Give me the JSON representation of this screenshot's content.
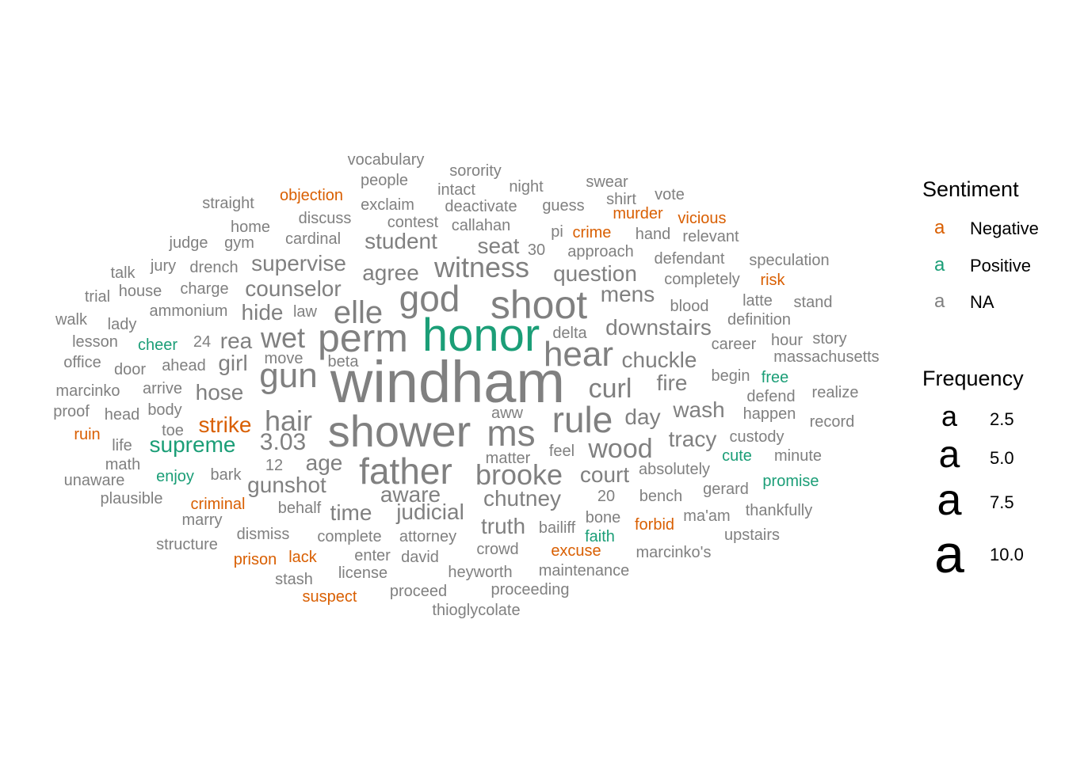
{
  "chart_data": {
    "type": "wordcloud",
    "color_legend": {
      "title": "Sentiment",
      "key_glyph": "a",
      "entries": [
        {
          "label": "Negative",
          "color": "#D95F02"
        },
        {
          "label": "Positive",
          "color": "#1B9E77"
        },
        {
          "label": "NA",
          "color": "#808080"
        }
      ]
    },
    "size_legend": {
      "title": "Frequency",
      "key_glyph": "a",
      "entries": [
        {
          "label": "2.5",
          "value": 2.5
        },
        {
          "label": "5.0",
          "value": 5.0
        },
        {
          "label": "7.5",
          "value": 7.5
        },
        {
          "label": "10.0",
          "value": 10.0
        }
      ]
    },
    "words": [
      {
        "word": "windham",
        "frequency": 11,
        "sentiment": "NA"
      },
      {
        "word": "honor",
        "frequency": 8,
        "sentiment": "Positive"
      },
      {
        "word": "shower",
        "frequency": 8,
        "sentiment": "NA"
      },
      {
        "word": "perm",
        "frequency": 7.5,
        "sentiment": "NA"
      },
      {
        "word": "shoot",
        "frequency": 7,
        "sentiment": "NA"
      },
      {
        "word": "god",
        "frequency": 6,
        "sentiment": "NA"
      },
      {
        "word": "rule",
        "frequency": 6.5,
        "sentiment": "NA"
      },
      {
        "word": "ms",
        "frequency": 6.5,
        "sentiment": "NA"
      },
      {
        "word": "father",
        "frequency": 6,
        "sentiment": "NA"
      },
      {
        "word": "hear",
        "frequency": 5.5,
        "sentiment": "NA"
      },
      {
        "word": "elle",
        "frequency": 5,
        "sentiment": "NA"
      },
      {
        "word": "gun",
        "frequency": 5,
        "sentiment": "NA"
      },
      {
        "word": "witness",
        "frequency": 4.5,
        "sentiment": "NA"
      },
      {
        "word": "wet",
        "frequency": 4.5,
        "sentiment": "NA"
      },
      {
        "word": "hair",
        "frequency": 4.5,
        "sentiment": "NA"
      },
      {
        "word": "brooke",
        "frequency": 4.5,
        "sentiment": "NA"
      },
      {
        "word": "wood",
        "frequency": 4,
        "sentiment": "NA"
      },
      {
        "word": "curl",
        "frequency": 4,
        "sentiment": "NA"
      },
      {
        "word": "3.03",
        "frequency": 4,
        "sentiment": "NA"
      },
      {
        "word": "downstairs",
        "frequency": 3.5,
        "sentiment": "NA"
      },
      {
        "word": "chuckle",
        "frequency": 3.5,
        "sentiment": "NA"
      },
      {
        "word": "question",
        "frequency": 3.5,
        "sentiment": "NA"
      },
      {
        "word": "counselor",
        "frequency": 3.5,
        "sentiment": "NA"
      },
      {
        "word": "supervise",
        "frequency": 3.5,
        "sentiment": "NA"
      },
      {
        "word": "student",
        "frequency": 3.5,
        "sentiment": "NA"
      },
      {
        "word": "agree",
        "frequency": 3.5,
        "sentiment": "NA"
      },
      {
        "word": "mens",
        "frequency": 3.5,
        "sentiment": "NA"
      },
      {
        "word": "seat",
        "frequency": 3.5,
        "sentiment": "NA"
      },
      {
        "word": "hide",
        "frequency": 3.5,
        "sentiment": "NA"
      },
      {
        "word": "rea",
        "frequency": 3.5,
        "sentiment": "NA"
      },
      {
        "word": "girl",
        "frequency": 3.5,
        "sentiment": "NA"
      },
      {
        "word": "hose",
        "frequency": 3.5,
        "sentiment": "NA"
      },
      {
        "word": "fire",
        "frequency": 3.5,
        "sentiment": "NA"
      },
      {
        "word": "wash",
        "frequency": 3.5,
        "sentiment": "NA"
      },
      {
        "word": "day",
        "frequency": 3.5,
        "sentiment": "NA"
      },
      {
        "word": "tracy",
        "frequency": 3.5,
        "sentiment": "NA"
      },
      {
        "word": "court",
        "frequency": 3.5,
        "sentiment": "NA"
      },
      {
        "word": "chutney",
        "frequency": 3.5,
        "sentiment": "NA"
      },
      {
        "word": "aware",
        "frequency": 3.5,
        "sentiment": "NA"
      },
      {
        "word": "judicial",
        "frequency": 3.5,
        "sentiment": "NA"
      },
      {
        "word": "time",
        "frequency": 3.5,
        "sentiment": "NA"
      },
      {
        "word": "truth",
        "frequency": 3.5,
        "sentiment": "NA"
      },
      {
        "word": "gunshot",
        "frequency": 3.5,
        "sentiment": "NA"
      },
      {
        "word": "age",
        "frequency": 3.5,
        "sentiment": "NA"
      },
      {
        "word": "supreme",
        "frequency": 3.5,
        "sentiment": "Positive"
      },
      {
        "word": "strike",
        "frequency": 3.5,
        "sentiment": "Negative"
      },
      {
        "word": "vocabulary",
        "frequency": 2.5,
        "sentiment": "NA"
      },
      {
        "word": "sorority",
        "frequency": 2.5,
        "sentiment": "NA"
      },
      {
        "word": "people",
        "frequency": 2.5,
        "sentiment": "NA"
      },
      {
        "word": "swear",
        "frequency": 2.5,
        "sentiment": "NA"
      },
      {
        "word": "intact",
        "frequency": 2.5,
        "sentiment": "NA"
      },
      {
        "word": "night",
        "frequency": 2.5,
        "sentiment": "NA"
      },
      {
        "word": "straight",
        "frequency": 2.5,
        "sentiment": "NA"
      },
      {
        "word": "objection",
        "frequency": 2.5,
        "sentiment": "Negative"
      },
      {
        "word": "exclaim",
        "frequency": 2.5,
        "sentiment": "NA"
      },
      {
        "word": "deactivate",
        "frequency": 2.5,
        "sentiment": "NA"
      },
      {
        "word": "guess",
        "frequency": 2.5,
        "sentiment": "NA"
      },
      {
        "word": "shirt",
        "frequency": 2.5,
        "sentiment": "NA"
      },
      {
        "word": "vote",
        "frequency": 2.5,
        "sentiment": "NA"
      },
      {
        "word": "home",
        "frequency": 2.5,
        "sentiment": "NA"
      },
      {
        "word": "discuss",
        "frequency": 2.5,
        "sentiment": "NA"
      },
      {
        "word": "contest",
        "frequency": 2.5,
        "sentiment": "NA"
      },
      {
        "word": "callahan",
        "frequency": 2.5,
        "sentiment": "NA"
      },
      {
        "word": "murder",
        "frequency": 2.5,
        "sentiment": "Negative"
      },
      {
        "word": "vicious",
        "frequency": 2.5,
        "sentiment": "Negative"
      },
      {
        "word": "judge",
        "frequency": 2.5,
        "sentiment": "NA"
      },
      {
        "word": "gym",
        "frequency": 2.5,
        "sentiment": "NA"
      },
      {
        "word": "cardinal",
        "frequency": 2.5,
        "sentiment": "NA"
      },
      {
        "word": "pi",
        "frequency": 2.5,
        "sentiment": "NA"
      },
      {
        "word": "crime",
        "frequency": 2.5,
        "sentiment": "Negative"
      },
      {
        "word": "hand",
        "frequency": 2.5,
        "sentiment": "NA"
      },
      {
        "word": "relevant",
        "frequency": 2.5,
        "sentiment": "NA"
      },
      {
        "word": "30",
        "frequency": 2.5,
        "sentiment": "NA"
      },
      {
        "word": "approach",
        "frequency": 2.5,
        "sentiment": "NA"
      },
      {
        "word": "defendant",
        "frequency": 2.5,
        "sentiment": "NA"
      },
      {
        "word": "speculation",
        "frequency": 2.5,
        "sentiment": "NA"
      },
      {
        "word": "talk",
        "frequency": 2.5,
        "sentiment": "NA"
      },
      {
        "word": "jury",
        "frequency": 2.5,
        "sentiment": "NA"
      },
      {
        "word": "drench",
        "frequency": 2.5,
        "sentiment": "NA"
      },
      {
        "word": "completely",
        "frequency": 2.5,
        "sentiment": "NA"
      },
      {
        "word": "risk",
        "frequency": 2.5,
        "sentiment": "Negative"
      },
      {
        "word": "trial",
        "frequency": 2.5,
        "sentiment": "NA"
      },
      {
        "word": "house",
        "frequency": 2.5,
        "sentiment": "NA"
      },
      {
        "word": "charge",
        "frequency": 2.5,
        "sentiment": "NA"
      },
      {
        "word": "latte",
        "frequency": 2.5,
        "sentiment": "NA"
      },
      {
        "word": "stand",
        "frequency": 2.5,
        "sentiment": "NA"
      },
      {
        "word": "ammonium",
        "frequency": 2.5,
        "sentiment": "NA"
      },
      {
        "word": "law",
        "frequency": 2.5,
        "sentiment": "NA"
      },
      {
        "word": "blood",
        "frequency": 2.5,
        "sentiment": "NA"
      },
      {
        "word": "definition",
        "frequency": 2.5,
        "sentiment": "NA"
      },
      {
        "word": "walk",
        "frequency": 2.5,
        "sentiment": "NA"
      },
      {
        "word": "lady",
        "frequency": 2.5,
        "sentiment": "NA"
      },
      {
        "word": "delta",
        "frequency": 2.5,
        "sentiment": "NA"
      },
      {
        "word": "lesson",
        "frequency": 2.5,
        "sentiment": "NA"
      },
      {
        "word": "cheer",
        "frequency": 2.5,
        "sentiment": "Positive"
      },
      {
        "word": "24",
        "frequency": 2.5,
        "sentiment": "NA"
      },
      {
        "word": "career",
        "frequency": 2.5,
        "sentiment": "NA"
      },
      {
        "word": "hour",
        "frequency": 2.5,
        "sentiment": "NA"
      },
      {
        "word": "story",
        "frequency": 2.5,
        "sentiment": "NA"
      },
      {
        "word": "massachusetts",
        "frequency": 2.5,
        "sentiment": "NA"
      },
      {
        "word": "office",
        "frequency": 2.5,
        "sentiment": "NA"
      },
      {
        "word": "door",
        "frequency": 2.5,
        "sentiment": "NA"
      },
      {
        "word": "ahead",
        "frequency": 2.5,
        "sentiment": "NA"
      },
      {
        "word": "beta",
        "frequency": 2.5,
        "sentiment": "NA"
      },
      {
        "word": "begin",
        "frequency": 2.5,
        "sentiment": "NA"
      },
      {
        "word": "free",
        "frequency": 2.5,
        "sentiment": "Positive"
      },
      {
        "word": "marcinko",
        "frequency": 2.5,
        "sentiment": "NA"
      },
      {
        "word": "arrive",
        "frequency": 2.5,
        "sentiment": "NA"
      },
      {
        "word": "defend",
        "frequency": 2.5,
        "sentiment": "NA"
      },
      {
        "word": "realize",
        "frequency": 2.5,
        "sentiment": "NA"
      },
      {
        "word": "proof",
        "frequency": 2.5,
        "sentiment": "NA"
      },
      {
        "word": "head",
        "frequency": 2.5,
        "sentiment": "NA"
      },
      {
        "word": "body",
        "frequency": 2.5,
        "sentiment": "NA"
      },
      {
        "word": "aww",
        "frequency": 2.5,
        "sentiment": "NA"
      },
      {
        "word": "happen",
        "frequency": 2.5,
        "sentiment": "NA"
      },
      {
        "word": "record",
        "frequency": 2.5,
        "sentiment": "NA"
      },
      {
        "word": "ruin",
        "frequency": 2.5,
        "sentiment": "Negative"
      },
      {
        "word": "toe",
        "frequency": 2.5,
        "sentiment": "NA"
      },
      {
        "word": "custody",
        "frequency": 2.5,
        "sentiment": "NA"
      },
      {
        "word": "life",
        "frequency": 2.5,
        "sentiment": "NA"
      },
      {
        "word": "feel",
        "frequency": 2.5,
        "sentiment": "NA"
      },
      {
        "word": "cute",
        "frequency": 2.5,
        "sentiment": "Positive"
      },
      {
        "word": "minute",
        "frequency": 2.5,
        "sentiment": "NA"
      },
      {
        "word": "math",
        "frequency": 2.5,
        "sentiment": "NA"
      },
      {
        "word": "12",
        "frequency": 2.5,
        "sentiment": "NA"
      },
      {
        "word": "matter",
        "frequency": 2.5,
        "sentiment": "NA"
      },
      {
        "word": "absolutely",
        "frequency": 2.5,
        "sentiment": "NA"
      },
      {
        "word": "unaware",
        "frequency": 2.5,
        "sentiment": "NA"
      },
      {
        "word": "enjoy",
        "frequency": 2.5,
        "sentiment": "Positive"
      },
      {
        "word": "bark",
        "frequency": 2.5,
        "sentiment": "NA"
      },
      {
        "word": "gerard",
        "frequency": 2.5,
        "sentiment": "NA"
      },
      {
        "word": "promise",
        "frequency": 2.5,
        "sentiment": "Positive"
      },
      {
        "word": "plausible",
        "frequency": 2.5,
        "sentiment": "NA"
      },
      {
        "word": "20",
        "frequency": 2.5,
        "sentiment": "NA"
      },
      {
        "word": "bench",
        "frequency": 2.5,
        "sentiment": "NA"
      },
      {
        "word": "criminal",
        "frequency": 2.5,
        "sentiment": "Negative"
      },
      {
        "word": "behalf",
        "frequency": 2.5,
        "sentiment": "NA"
      },
      {
        "word": "thankfully",
        "frequency": 2.5,
        "sentiment": "NA"
      },
      {
        "word": "marry",
        "frequency": 2.5,
        "sentiment": "NA"
      },
      {
        "word": "bone",
        "frequency": 2.5,
        "sentiment": "NA"
      },
      {
        "word": "ma'am",
        "frequency": 2.5,
        "sentiment": "NA"
      },
      {
        "word": "bailiff",
        "frequency": 2.5,
        "sentiment": "NA"
      },
      {
        "word": "forbid",
        "frequency": 2.5,
        "sentiment": "Negative"
      },
      {
        "word": "dismiss",
        "frequency": 2.5,
        "sentiment": "NA"
      },
      {
        "word": "faith",
        "frequency": 2.5,
        "sentiment": "Positive"
      },
      {
        "word": "upstairs",
        "frequency": 2.5,
        "sentiment": "NA"
      },
      {
        "word": "complete",
        "frequency": 2.5,
        "sentiment": "NA"
      },
      {
        "word": "attorney",
        "frequency": 2.5,
        "sentiment": "NA"
      },
      {
        "word": "structure",
        "frequency": 2.5,
        "sentiment": "NA"
      },
      {
        "word": "crowd",
        "frequency": 2.5,
        "sentiment": "NA"
      },
      {
        "word": "excuse",
        "frequency": 2.5,
        "sentiment": "Negative"
      },
      {
        "word": "marcinko's",
        "frequency": 2.5,
        "sentiment": "NA"
      },
      {
        "word": "prison",
        "frequency": 2.5,
        "sentiment": "Negative"
      },
      {
        "word": "lack",
        "frequency": 2.5,
        "sentiment": "Negative"
      },
      {
        "word": "enter",
        "frequency": 2.5,
        "sentiment": "NA"
      },
      {
        "word": "david",
        "frequency": 2.5,
        "sentiment": "NA"
      },
      {
        "word": "stash",
        "frequency": 2.5,
        "sentiment": "NA"
      },
      {
        "word": "license",
        "frequency": 2.5,
        "sentiment": "NA"
      },
      {
        "word": "heyworth",
        "frequency": 2.5,
        "sentiment": "NA"
      },
      {
        "word": "maintenance",
        "frequency": 2.5,
        "sentiment": "NA"
      },
      {
        "word": "suspect",
        "frequency": 2.5,
        "sentiment": "Negative"
      },
      {
        "word": "proceed",
        "frequency": 2.5,
        "sentiment": "NA"
      },
      {
        "word": "proceeding",
        "frequency": 2.5,
        "sentiment": "NA"
      },
      {
        "word": "thioglycolate",
        "frequency": 2.5,
        "sentiment": "NA"
      },
      {
        "word": "move",
        "frequency": 2.5,
        "sentiment": "NA"
      }
    ]
  }
}
